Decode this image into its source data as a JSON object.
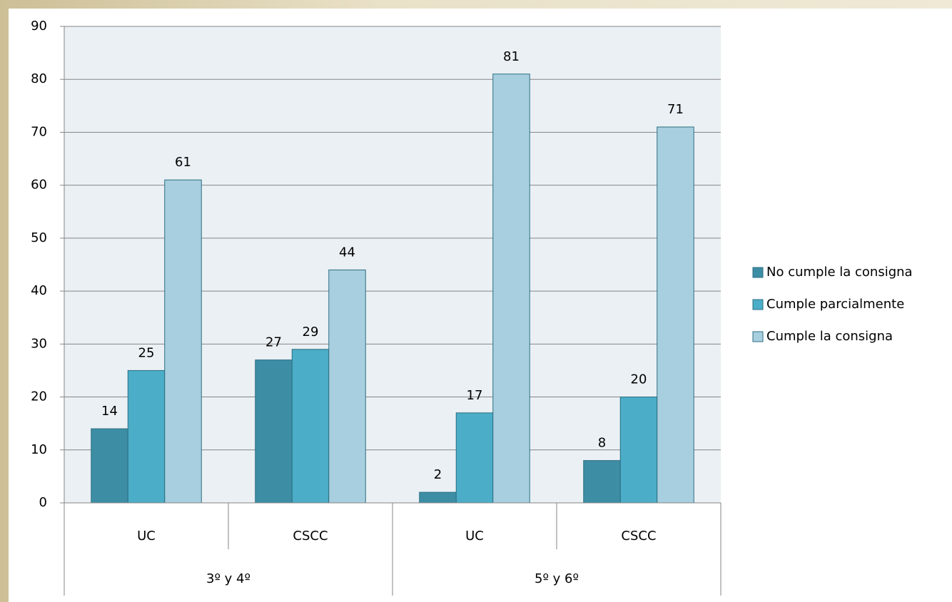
{
  "chart_data": {
    "type": "bar",
    "categories": [
      "UC",
      "CSCC",
      "UC",
      "CSCC"
    ],
    "groups": [
      "3º y 4º",
      "5º y 6º"
    ],
    "series": [
      {
        "name": "No cumple la consigna",
        "color": "#3d8ea5",
        "values": [
          14,
          27,
          2,
          8
        ]
      },
      {
        "name": "Cumple parcialmente",
        "color": "#4badc7",
        "values": [
          25,
          29,
          17,
          20
        ]
      },
      {
        "name": "Cumple la consigna",
        "color": "#a8cfdf",
        "values": [
          61,
          44,
          81,
          71
        ]
      }
    ],
    "ylim": [
      0,
      90
    ],
    "yticks": [
      0,
      10,
      20,
      30,
      40,
      50,
      60,
      70,
      80,
      90
    ],
    "grid": true,
    "legend": "right"
  }
}
